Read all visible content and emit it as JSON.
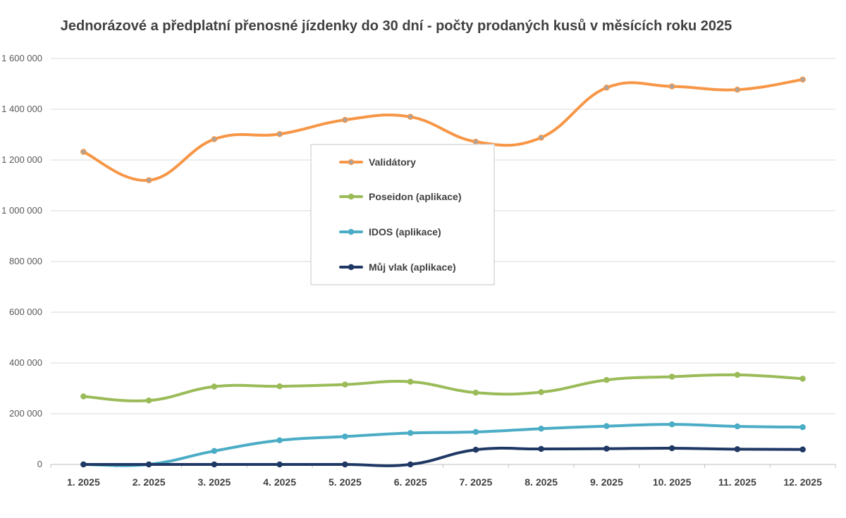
{
  "chart_data": {
    "type": "line",
    "title": "Jednorázové a předplatní přenosné jízdenky do 30 dní - počty prodaných kusů v měsících roku 2025",
    "xlabel": "",
    "ylabel": "",
    "categories": [
      "1. 2025",
      "2. 2025",
      "3. 2025",
      "4. 2025",
      "5. 2025",
      "6. 2025",
      "7. 2025",
      "8. 2025",
      "9. 2025",
      "10. 2025",
      "11. 2025",
      "12. 2025"
    ],
    "ylim": [
      0,
      1600000
    ],
    "yticks": [
      0,
      200000,
      400000,
      600000,
      800000,
      1000000,
      1200000,
      1400000,
      1600000
    ],
    "ytick_labels": [
      "0",
      "200 000",
      "400 000",
      "600 000",
      "800 000",
      "1 000 000",
      "1 200 000",
      "1 400 000",
      "1 600 000"
    ],
    "grid": true,
    "legend_position": "center",
    "series": [
      {
        "name": "Validátory",
        "color": "#F79646",
        "marker_fill": "#A5A5A5",
        "values": [
          1232000,
          1120000,
          1282000,
          1302000,
          1358000,
          1370000,
          1272000,
          1288000,
          1485000,
          1490000,
          1477000,
          1517000
        ]
      },
      {
        "name": "Poseidon (aplikace)",
        "color": "#9BBB59",
        "marker_fill": "#9BBB59",
        "values": [
          268000,
          252000,
          307000,
          308000,
          315000,
          326000,
          283000,
          285000,
          333000,
          346000,
          353000,
          338000
        ]
      },
      {
        "name": "IDOS (aplikace)",
        "color": "#4BACC6",
        "marker_fill": "#4BACC6",
        "values": [
          0,
          0,
          53000,
          95000,
          110000,
          124000,
          128000,
          141000,
          151000,
          158000,
          150000,
          147000
        ]
      },
      {
        "name": "Můj vlak (aplikace)",
        "color": "#1F3864",
        "marker_fill": "#1F3864",
        "values": [
          0,
          0,
          0,
          0,
          0,
          0,
          58000,
          61000,
          62000,
          64000,
          60000,
          59000
        ]
      }
    ]
  }
}
